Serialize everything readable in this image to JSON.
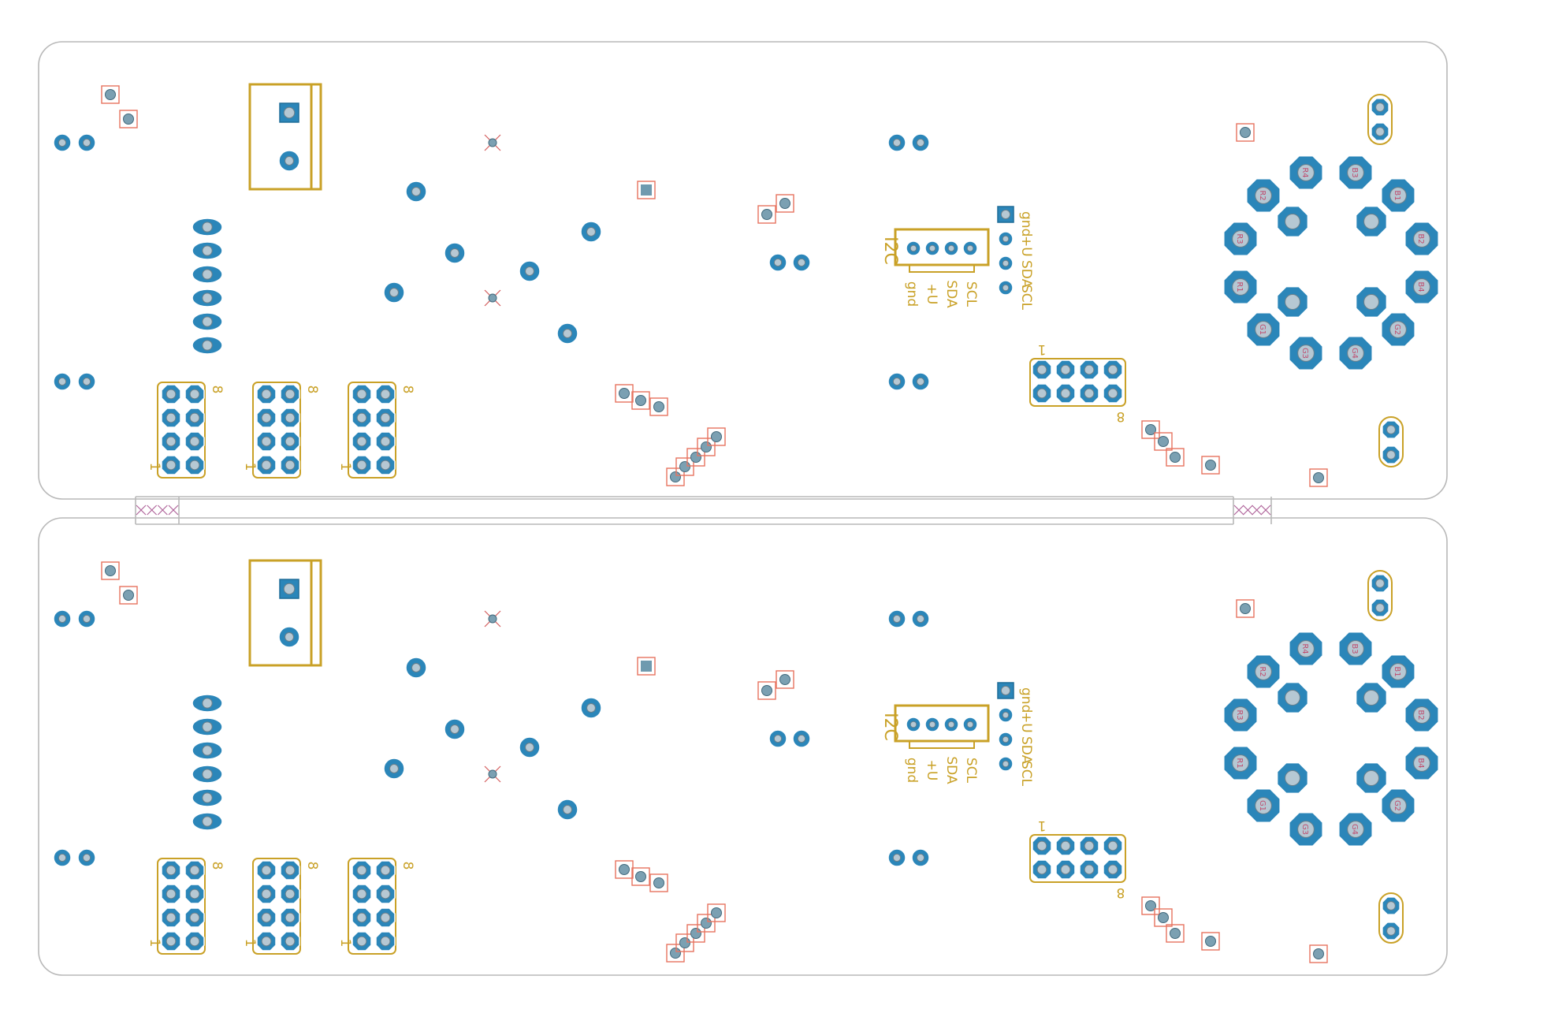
{
  "panel": {
    "layer_colors": {
      "outline": "#b8b8b8",
      "silkscreen": "#c9a127",
      "copper_pad": "#1f7fb5",
      "drill": "#b6c8d3",
      "smd_marker": "#e7735f",
      "mouse_bite": "#b0659b"
    },
    "boards": [
      {
        "name": "board-top",
        "i2c_label": "I2C",
        "i2c_pin_labels": [
          "gnd",
          "+U",
          "SDA",
          "SCL"
        ],
        "i2c_side_labels": [
          "gnd",
          "+U",
          "SDA",
          "SCL"
        ],
        "header_labels_1": [
          "1",
          "1",
          "1"
        ],
        "header_labels_8": [
          "8",
          "8",
          "8"
        ],
        "right_header_1": "1",
        "right_header_8": "8",
        "led_labels": [
          "R4",
          "B3",
          "R2",
          "B1",
          "R3",
          "B2",
          "R1",
          "B4",
          "G1",
          "G2",
          "G3",
          "G4"
        ]
      },
      {
        "name": "board-bottom",
        "i2c_label": "I2C",
        "i2c_pin_labels": [
          "gnd",
          "+U",
          "SDA",
          "SCL"
        ],
        "i2c_side_labels": [
          "gnd",
          "+U",
          "SDA",
          "SCL"
        ],
        "header_labels_1": [
          "1",
          "1",
          "1"
        ],
        "header_labels_8": [
          "8",
          "8",
          "8"
        ],
        "right_header_1": "1",
        "right_header_8": "8",
        "led_labels": [
          "R4",
          "B3",
          "R2",
          "B1",
          "R3",
          "B2",
          "R1",
          "B4",
          "G1",
          "G2",
          "G3",
          "G4"
        ]
      }
    ]
  }
}
